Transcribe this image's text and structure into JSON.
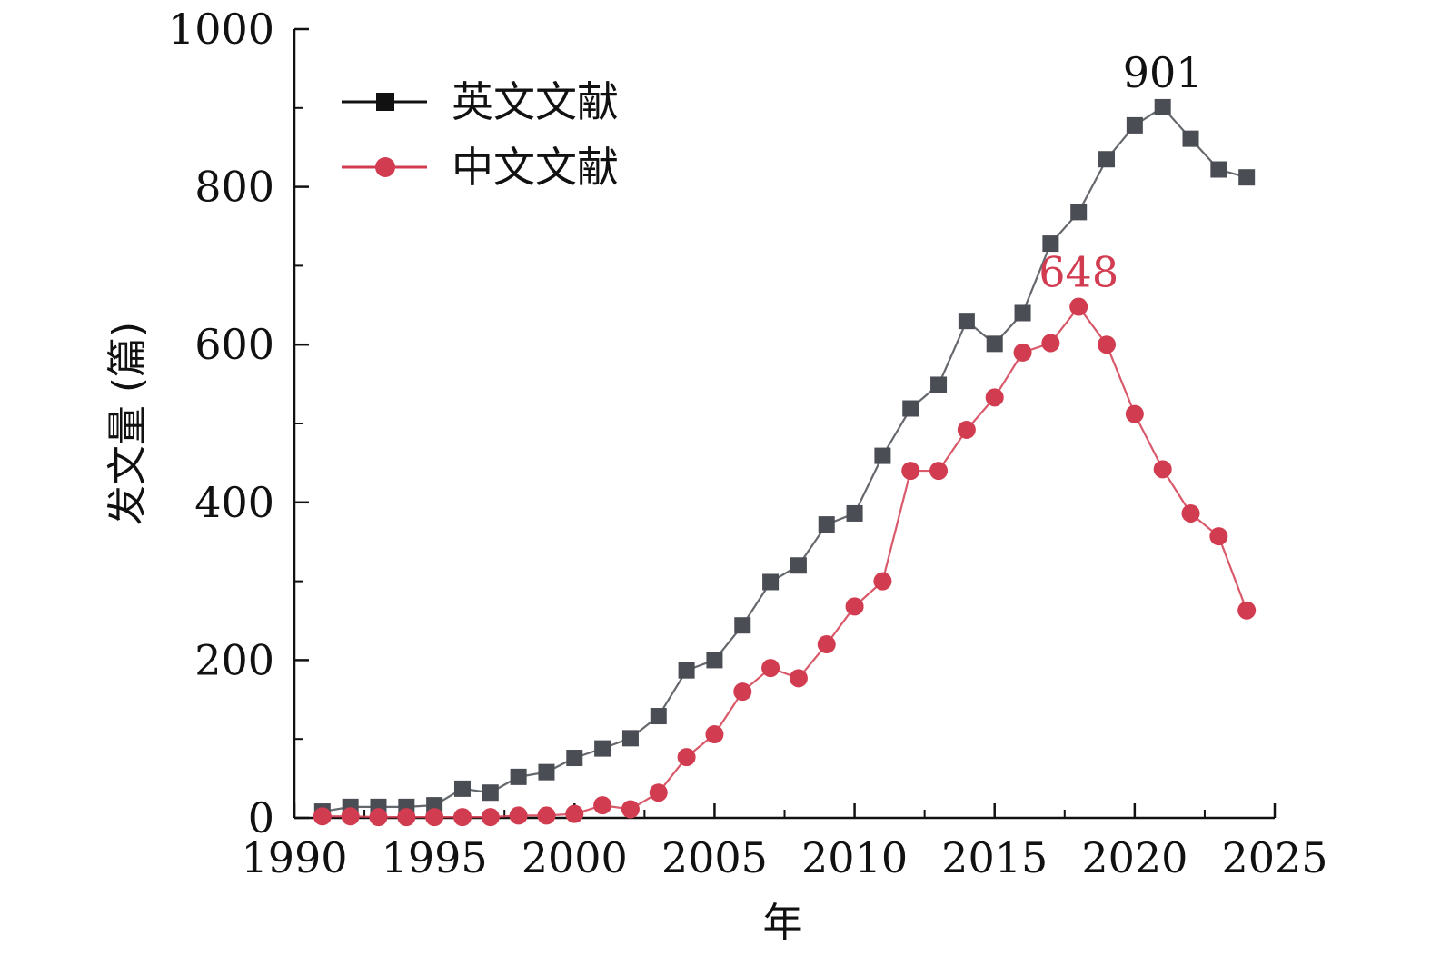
{
  "chart_data": {
    "type": "line",
    "xlabel": "年",
    "ylabel": "发文量 (篇)",
    "xlim": [
      1990,
      2025
    ],
    "ylim": [
      0,
      1000
    ],
    "x_ticks": [
      1990,
      1995,
      2000,
      2005,
      2010,
      2015,
      2020,
      2025
    ],
    "y_ticks": [
      0,
      200,
      400,
      600,
      800,
      1000
    ],
    "grid": false,
    "legend_position": "top-left",
    "series": [
      {
        "name": "英文文献",
        "color": "#4a4d54",
        "marker": "square",
        "x": [
          1991,
          1992,
          1993,
          1994,
          1995,
          1996,
          1997,
          1998,
          1999,
          2000,
          2001,
          2002,
          2003,
          2004,
          2005,
          2006,
          2007,
          2008,
          2009,
          2010,
          2011,
          2012,
          2013,
          2014,
          2015,
          2016,
          2017,
          2018,
          2019,
          2020,
          2021,
          2022,
          2023,
          2024
        ],
        "y": [
          8,
          14,
          14,
          14,
          16,
          37,
          32,
          52,
          58,
          76,
          88,
          101,
          129,
          187,
          200,
          244,
          299,
          320,
          372,
          386,
          459,
          519,
          549,
          630,
          601,
          640,
          728,
          768,
          835,
          878,
          901,
          861,
          822,
          812
        ]
      },
      {
        "name": "中文文献",
        "color": "#d23c50",
        "marker": "circle",
        "x": [
          1991,
          1992,
          1993,
          1994,
          1995,
          1996,
          1997,
          1998,
          1999,
          2000,
          2001,
          2002,
          2003,
          2004,
          2005,
          2006,
          2007,
          2008,
          2009,
          2010,
          2011,
          2012,
          2013,
          2014,
          2015,
          2016,
          2017,
          2018,
          2019,
          2020,
          2021,
          2022,
          2023,
          2024
        ],
        "y": [
          2,
          2,
          1,
          1,
          1,
          1,
          1,
          3,
          3,
          5,
          16,
          11,
          32,
          77,
          106,
          160,
          190,
          177,
          220,
          268,
          300,
          440,
          440,
          492,
          533,
          590,
          602,
          648,
          600,
          512,
          442,
          386,
          357,
          263
        ]
      }
    ],
    "annotations": [
      {
        "text": "901",
        "x": 2021,
        "y": 901,
        "color": "#111111"
      },
      {
        "text": "648",
        "x": 2018,
        "y": 648,
        "color": "#d23c50"
      }
    ]
  }
}
